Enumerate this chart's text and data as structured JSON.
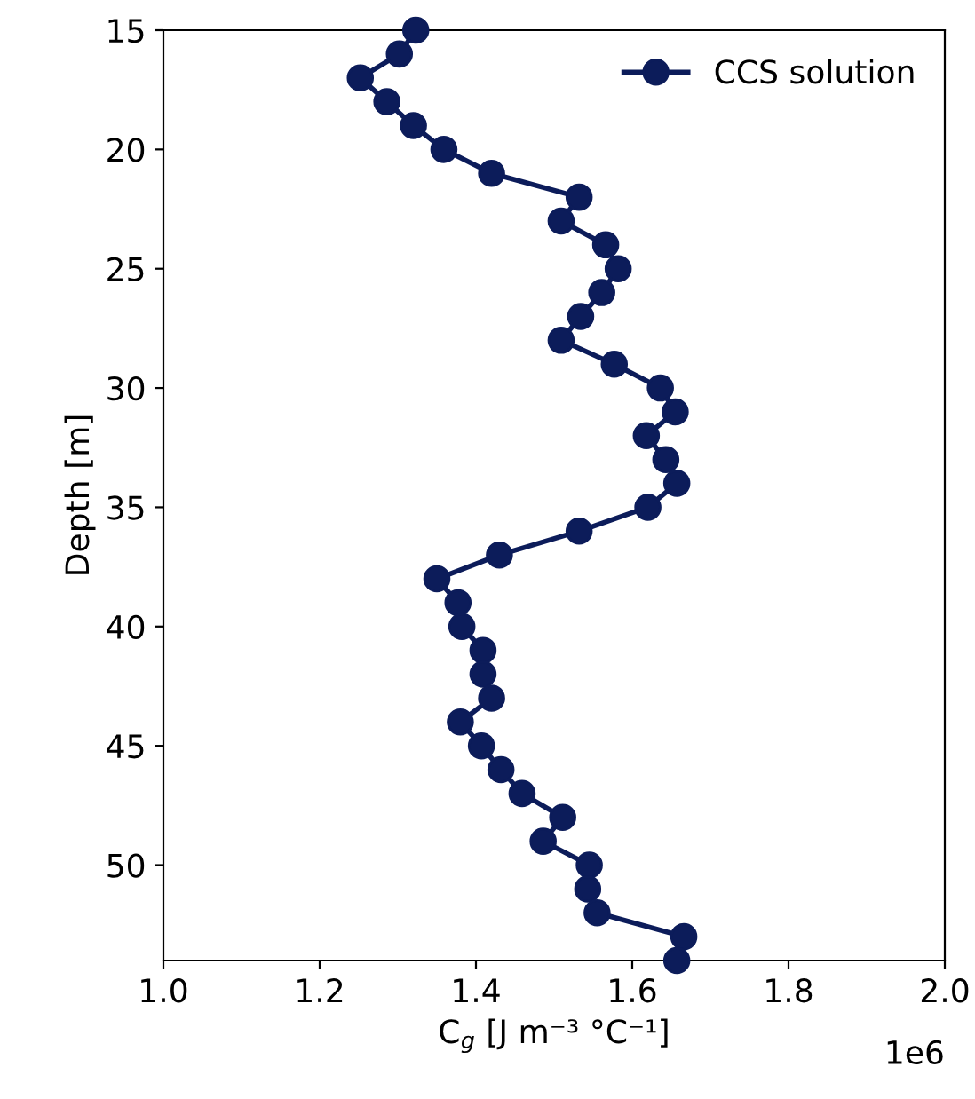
{
  "chart_data": {
    "type": "line",
    "xlabel": "C$_{g}$ [J m⁻³ °C⁻¹]",
    "ylabel": "Depth [m]",
    "annotations": [
      "1e6"
    ],
    "series": [
      {
        "name": "CCS solution",
        "color": "#0c1c5a",
        "x": [
          1.323,
          1.302,
          1.252,
          1.286,
          1.32,
          1.359,
          1.42,
          1.532,
          1.509,
          1.566,
          1.582,
          1.561,
          1.534,
          1.509,
          1.577,
          1.636,
          1.655,
          1.618,
          1.643,
          1.657,
          1.62,
          1.532,
          1.43,
          1.35,
          1.377,
          1.382,
          1.409,
          1.409,
          1.42,
          1.38,
          1.407,
          1.432,
          1.459,
          1.511,
          1.486,
          1.545,
          1.543,
          1.555,
          1.666,
          1.657
        ],
        "values": [
          15,
          16,
          17,
          18,
          19,
          20,
          21,
          22,
          23,
          24,
          25,
          26,
          27,
          28,
          29,
          30,
          31,
          32,
          33,
          34,
          35,
          36,
          37,
          38,
          39,
          40,
          41,
          42,
          43,
          44,
          45,
          46,
          47,
          48,
          49,
          50,
          51,
          52,
          53,
          54
        ]
      }
    ],
    "xlim": [
      1.0,
      2.0
    ],
    "xticks": [
      {
        "value": 1.0,
        "label": "1.0"
      },
      {
        "value": 1.2,
        "label": "1.2"
      },
      {
        "value": 1.4,
        "label": "1.4"
      },
      {
        "value": 1.6,
        "label": "1.6"
      },
      {
        "value": 1.8,
        "label": "1.8"
      },
      {
        "value": 2.0,
        "label": "2.0"
      }
    ],
    "ylim": [
      54,
      15
    ],
    "yticks": [
      15,
      20,
      25,
      30,
      35,
      40,
      45,
      50
    ],
    "grid": false,
    "legend": "top right",
    "marker": "circle",
    "line_style": "solid"
  }
}
